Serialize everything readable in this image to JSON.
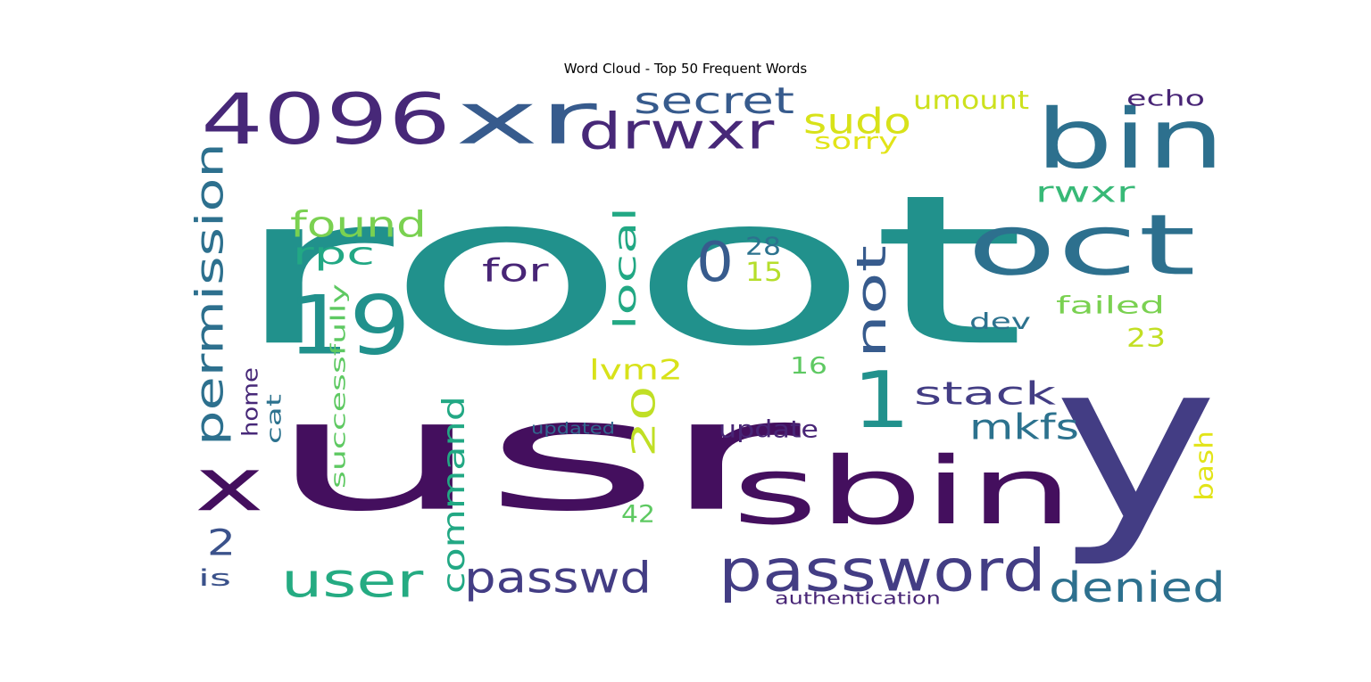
{
  "chart_data": {
    "type": "word_cloud",
    "title": "Word Cloud - Top 50 Frequent Words",
    "words": [
      {
        "text": "root",
        "color": "#21918c"
      },
      {
        "text": "usr",
        "color": "#440f5e"
      },
      {
        "text": "y",
        "color": "#433d84"
      },
      {
        "text": "xr",
        "color": "#375b8d"
      },
      {
        "text": "4096",
        "color": "#472878"
      },
      {
        "text": "bin",
        "color": "#2d708e"
      },
      {
        "text": "oct",
        "color": "#2d708e"
      },
      {
        "text": "sbin",
        "color": "#440f5e"
      },
      {
        "text": "19",
        "color": "#21918c"
      },
      {
        "text": "x",
        "color": "#440f5e"
      },
      {
        "text": "drwxr",
        "color": "#472878"
      },
      {
        "text": "password",
        "color": "#433d84"
      },
      {
        "text": "1",
        "color": "#21918c"
      },
      {
        "text": "user",
        "color": "#25ab82"
      },
      {
        "text": "passwd",
        "color": "#433d84"
      },
      {
        "text": "denied",
        "color": "#2d708e"
      },
      {
        "text": "secret",
        "color": "#375b8d"
      },
      {
        "text": "sudo",
        "color": "#d8e219"
      },
      {
        "text": "permission",
        "color": "#2d708e"
      },
      {
        "text": "not",
        "color": "#375b8d"
      },
      {
        "text": "0",
        "color": "#375b8d"
      },
      {
        "text": "command",
        "color": "#22a884"
      },
      {
        "text": "found",
        "color": "#7ad151"
      },
      {
        "text": "rpc",
        "color": "#22a884"
      },
      {
        "text": "stack",
        "color": "#433d84"
      },
      {
        "text": "mkfs",
        "color": "#2c728e"
      },
      {
        "text": "20",
        "color": "#c0df25"
      },
      {
        "text": "for",
        "color": "#482576"
      },
      {
        "text": "rwxr",
        "color": "#38b977"
      },
      {
        "text": "local",
        "color": "#22a884"
      },
      {
        "text": "umount",
        "color": "#cde11d"
      },
      {
        "text": "sorry",
        "color": "#e2e418"
      },
      {
        "text": "echo",
        "color": "#482576"
      },
      {
        "text": "lvm2",
        "color": "#d8e219"
      },
      {
        "text": "2",
        "color": "#3b528b"
      },
      {
        "text": "failed",
        "color": "#7ad151"
      },
      {
        "text": "update",
        "color": "#482576"
      },
      {
        "text": "dev",
        "color": "#2c728e"
      },
      {
        "text": "successfully",
        "color": "#5ec962"
      },
      {
        "text": "28",
        "color": "#2c728e"
      },
      {
        "text": "15",
        "color": "#b5de2b"
      },
      {
        "text": "23",
        "color": "#c2df23"
      },
      {
        "text": "16",
        "color": "#5ec962"
      },
      {
        "text": "42",
        "color": "#5ec962"
      },
      {
        "text": "home",
        "color": "#472878"
      },
      {
        "text": "cat",
        "color": "#2c728e"
      },
      {
        "text": "bash",
        "color": "#e2e418"
      },
      {
        "text": "is",
        "color": "#3b528b"
      },
      {
        "text": "authentication",
        "color": "#482576"
      },
      {
        "text": "updated",
        "color": "#31688e"
      }
    ]
  }
}
